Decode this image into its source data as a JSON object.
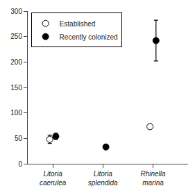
{
  "chart_data": {
    "type": "scatter",
    "categories": [
      "Litoria\ncaerulea",
      "Litoria\nsplendida",
      "Rhinella\nmarina"
    ],
    "series": [
      {
        "name": "Established",
        "color": "#ffffff",
        "marker": "circle",
        "values": [
          48,
          null,
          73
        ],
        "yerr_lower": [
          8,
          null,
          5
        ],
        "yerr_upper": [
          8,
          null,
          5
        ]
      },
      {
        "name": "Recently colonized",
        "color": "#000000",
        "marker": "circle",
        "values": [
          54,
          33,
          242
        ],
        "yerr_lower": [
          6,
          0,
          40
        ],
        "yerr_upper": [
          6,
          0,
          40
        ]
      }
    ],
    "ylim": [
      0,
      300
    ],
    "yticks": [
      0,
      50,
      100,
      150,
      200,
      250,
      300
    ],
    "grid": false,
    "legend": "upper left"
  }
}
